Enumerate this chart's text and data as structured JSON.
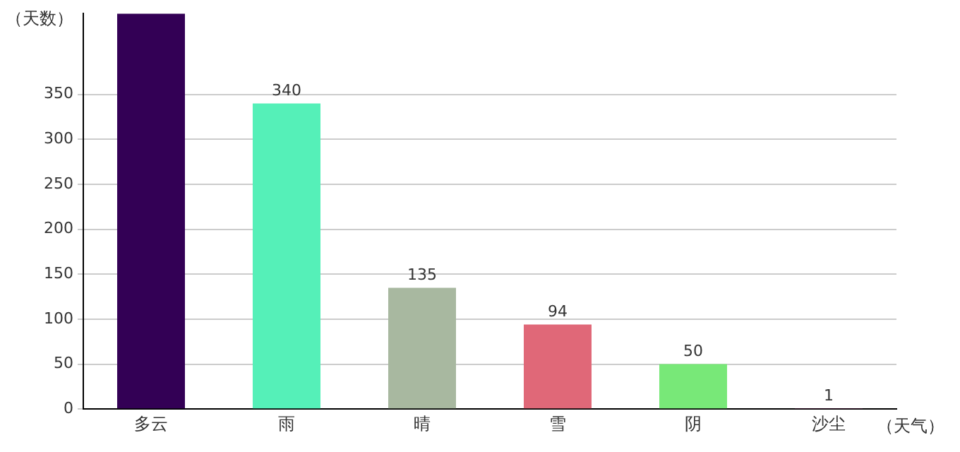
{
  "chart_data": {
    "type": "bar",
    "ylabel": "（天数）",
    "xlabel": "（天气）",
    "categories": [
      "多云",
      "雨",
      "晴",
      "雪",
      "阴",
      "沙尘"
    ],
    "values": [
      440,
      340,
      135,
      94,
      50,
      1
    ],
    "colors": [
      "#330055",
      "#55f0b8",
      "#a8b8a0",
      "#e06878",
      "#78e878",
      "#a03080"
    ],
    "value_labels": [
      null,
      "340",
      "135",
      "94",
      "50",
      "1"
    ],
    "ylim": [
      0,
      440
    ],
    "yticks": [
      0,
      50,
      100,
      150,
      200,
      250,
      300,
      350
    ],
    "grid": "y",
    "legend": false
  }
}
